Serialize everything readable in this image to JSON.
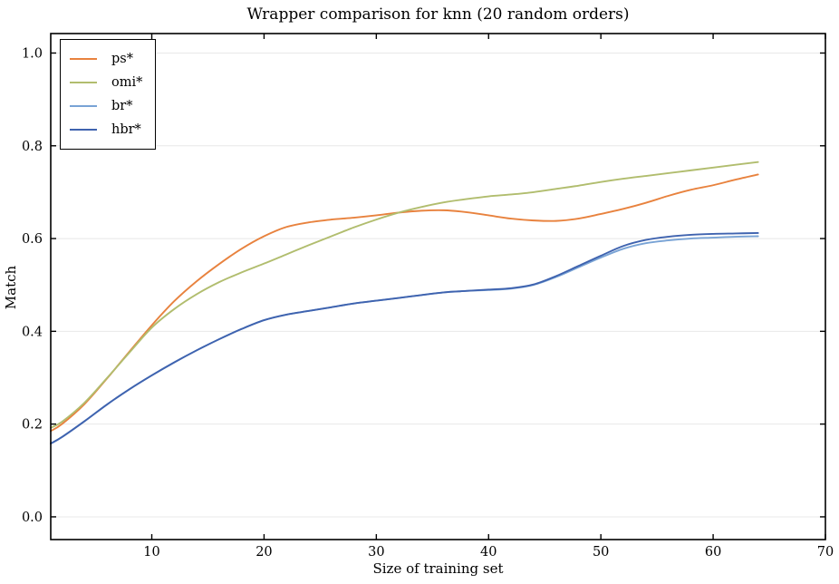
{
  "chart_data": {
    "type": "line",
    "title": "Wrapper comparison for knn (20 random orders)",
    "xlabel": "Size of training set",
    "ylabel": "Match",
    "xlim": [
      1,
      70
    ],
    "ylim": [
      -0.049,
      1.042
    ],
    "xticks": [
      {
        "v": 10,
        "label": "10"
      },
      {
        "v": 20,
        "label": "20"
      },
      {
        "v": 30,
        "label": "30"
      },
      {
        "v": 40,
        "label": "40"
      },
      {
        "v": 50,
        "label": "50"
      },
      {
        "v": 60,
        "label": "60"
      },
      {
        "v": 70,
        "label": "70"
      }
    ],
    "yticks": [
      {
        "v": 0.0,
        "label": "0.0"
      },
      {
        "v": 0.2,
        "label": "0.2"
      },
      {
        "v": 0.4,
        "label": "0.4"
      },
      {
        "v": 0.6,
        "label": "0.6"
      },
      {
        "v": 0.8,
        "label": "0.8"
      },
      {
        "v": 1.0,
        "label": "1.0"
      }
    ],
    "grid": "horizontal-only",
    "grid_color": "#e8e8e8",
    "axis_color": "#000000",
    "background": "#ffffff",
    "legend_position": "upper-left",
    "x": [
      1,
      2,
      4,
      6,
      8,
      10,
      12,
      14,
      16,
      18,
      20,
      22,
      24,
      26,
      28,
      30,
      32,
      34,
      36,
      38,
      40,
      42,
      44,
      46,
      48,
      50,
      52,
      54,
      56,
      58,
      60,
      62,
      64
    ],
    "series": [
      {
        "name": "ps*",
        "color": "#e8823e",
        "y": [
          0.185,
          0.2,
          0.243,
          0.298,
          0.356,
          0.413,
          0.465,
          0.508,
          0.545,
          0.578,
          0.605,
          0.625,
          0.635,
          0.641,
          0.645,
          0.65,
          0.656,
          0.66,
          0.661,
          0.657,
          0.65,
          0.643,
          0.639,
          0.638,
          0.643,
          0.653,
          0.664,
          0.677,
          0.692,
          0.705,
          0.715,
          0.727,
          0.738
        ]
      },
      {
        "name": "omi*",
        "color": "#b1bd6e",
        "y": [
          0.192,
          0.205,
          0.246,
          0.299,
          0.354,
          0.408,
          0.448,
          0.48,
          0.506,
          0.527,
          0.546,
          0.566,
          0.586,
          0.605,
          0.624,
          0.641,
          0.656,
          0.668,
          0.678,
          0.685,
          0.691,
          0.695,
          0.7,
          0.707,
          0.714,
          0.722,
          0.729,
          0.735,
          0.741,
          0.747,
          0.753,
          0.759,
          0.765
        ]
      },
      {
        "name": "br*",
        "color": "#79a3d5",
        "y": [
          0.158,
          0.172,
          0.206,
          0.242,
          0.275,
          0.305,
          0.333,
          0.359,
          0.383,
          0.405,
          0.424,
          0.436,
          0.444,
          0.452,
          0.46,
          0.466,
          0.472,
          0.478,
          0.484,
          0.487,
          0.489,
          0.492,
          0.5,
          0.517,
          0.538,
          0.559,
          0.578,
          0.59,
          0.596,
          0.6,
          0.602,
          0.604,
          0.605
        ]
      },
      {
        "name": "hbr*",
        "color": "#3f63af",
        "y": [
          0.158,
          0.172,
          0.206,
          0.242,
          0.275,
          0.305,
          0.333,
          0.359,
          0.383,
          0.405,
          0.424,
          0.436,
          0.444,
          0.452,
          0.46,
          0.466,
          0.472,
          0.478,
          0.484,
          0.487,
          0.49,
          0.493,
          0.501,
          0.519,
          0.541,
          0.563,
          0.584,
          0.597,
          0.604,
          0.608,
          0.61,
          0.611,
          0.612
        ]
      }
    ]
  }
}
